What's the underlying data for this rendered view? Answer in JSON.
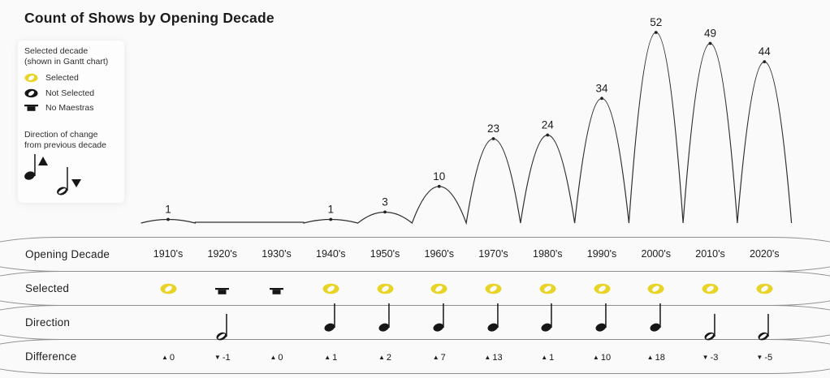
{
  "title": "Count of Shows by Opening Decade",
  "colors": {
    "accent_yellow": "#e8d327",
    "ink": "#161616",
    "curve_line": "#2f2f2f",
    "row_border": "#8d8d8d",
    "background": "#fafafa"
  },
  "legend": {
    "selected_block": {
      "line1": "Selected decade",
      "line2": "(shown in Gantt chart)"
    },
    "items": [
      {
        "icon": "selected-note-icon",
        "label": "Selected",
        "style": "yellow-notehead"
      },
      {
        "icon": "not-selected-note-icon",
        "label": "Not Selected",
        "style": "black-notehead"
      },
      {
        "icon": "no-maestras-rest-icon",
        "label": "No Maestras",
        "style": "rest"
      }
    ],
    "direction_block": {
      "line1": "Direction of change",
      "line2": "from previous decade"
    },
    "direction_symbols": [
      {
        "icon": "quarter-note-up-icon",
        "meaning": "increase"
      },
      {
        "icon": "half-note-down-icon",
        "meaning": "decrease"
      }
    ]
  },
  "chart_data": {
    "type": "line",
    "title": "Count of Shows by Opening Decade",
    "categories": [
      "1910's",
      "1920's",
      "1930's",
      "1940's",
      "1950's",
      "1960's",
      "1970's",
      "1980's",
      "1990's",
      "2000's",
      "2010's",
      "2020's"
    ],
    "values": [
      1,
      0,
      0,
      1,
      3,
      10,
      23,
      24,
      34,
      52,
      49,
      44
    ],
    "point_labels": [
      "1",
      "",
      "",
      "1",
      "3",
      "10",
      "23",
      "24",
      "34",
      "52",
      "49",
      "44"
    ],
    "xlabel": "Opening Decade",
    "ylabel": "Count of Shows",
    "ylim": [
      0,
      52
    ],
    "grid": false,
    "style": "series of arched humps, one per decade, peak dots with value labels, zero values drawn flat and unlabeled"
  },
  "table": {
    "row_labels": [
      "Opening Decade",
      "Selected",
      "Direction",
      "Difference"
    ],
    "columns": [
      {
        "decade": "1910's",
        "selected": "selected",
        "direction": null,
        "diff_dir": "up",
        "diff": "0"
      },
      {
        "decade": "1920's",
        "selected": "no-maestras",
        "direction": "down",
        "diff_dir": "down",
        "diff": "-1"
      },
      {
        "decade": "1930's",
        "selected": "no-maestras",
        "direction": null,
        "diff_dir": "up",
        "diff": "0"
      },
      {
        "decade": "1940's",
        "selected": "selected",
        "direction": "up",
        "diff_dir": "up",
        "diff": "1"
      },
      {
        "decade": "1950's",
        "selected": "selected",
        "direction": "up",
        "diff_dir": "up",
        "diff": "2"
      },
      {
        "decade": "1960's",
        "selected": "selected",
        "direction": "up",
        "diff_dir": "up",
        "diff": "7"
      },
      {
        "decade": "1970's",
        "selected": "selected",
        "direction": "up",
        "diff_dir": "up",
        "diff": "13"
      },
      {
        "decade": "1980's",
        "selected": "selected",
        "direction": "up",
        "diff_dir": "up",
        "diff": "1"
      },
      {
        "decade": "1990's",
        "selected": "selected",
        "direction": "up",
        "diff_dir": "up",
        "diff": "10"
      },
      {
        "decade": "2000's",
        "selected": "selected",
        "direction": "up",
        "diff_dir": "up",
        "diff": "18"
      },
      {
        "decade": "2010's",
        "selected": "selected",
        "direction": "down",
        "diff_dir": "down",
        "diff": "-3"
      },
      {
        "decade": "2020's",
        "selected": "selected",
        "direction": "down",
        "diff_dir": "down",
        "diff": "-5"
      }
    ],
    "triangle_up": "▲",
    "triangle_down": "▼"
  }
}
